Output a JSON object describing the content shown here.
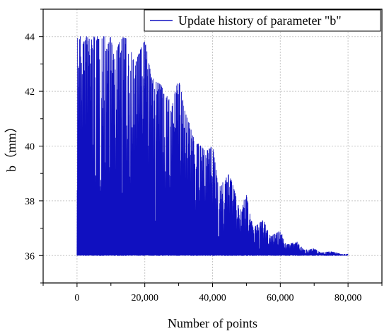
{
  "chart_data": {
    "type": "line",
    "title": "",
    "xlabel": "Number of points",
    "ylabel": "b（mm）",
    "xlim": [
      -10000,
      90000
    ],
    "ylim": [
      35,
      45
    ],
    "x_ticks": [
      0,
      20000,
      40000,
      60000,
      80000
    ],
    "x_tick_labels": [
      "0",
      "20,000",
      "40,000",
      "60,000",
      "80,000"
    ],
    "y_ticks": [
      36,
      38,
      40,
      42,
      44
    ],
    "y_tick_labels": [
      "36",
      "38",
      "40",
      "42",
      "44"
    ],
    "grid": true,
    "legend_position": "top-right",
    "series": [
      {
        "name": "Update history of parameter \"b\"",
        "color": "#1010c0",
        "baseline": 36.0,
        "envelope": [
          {
            "x": 0,
            "y": 44.0
          },
          {
            "x": 10000,
            "y": 44.0
          },
          {
            "x": 11000,
            "y": 43.2
          },
          {
            "x": 13000,
            "y": 44.0
          },
          {
            "x": 15000,
            "y": 43.9
          },
          {
            "x": 17000,
            "y": 43.0
          },
          {
            "x": 20000,
            "y": 43.9
          },
          {
            "x": 22000,
            "y": 42.5
          },
          {
            "x": 25000,
            "y": 42.2
          },
          {
            "x": 28000,
            "y": 41.5
          },
          {
            "x": 30000,
            "y": 42.5
          },
          {
            "x": 32000,
            "y": 41.2
          },
          {
            "x": 35000,
            "y": 40.2
          },
          {
            "x": 38000,
            "y": 39.8
          },
          {
            "x": 40000,
            "y": 40.0
          },
          {
            "x": 42000,
            "y": 38.5
          },
          {
            "x": 45000,
            "y": 39.0
          },
          {
            "x": 48000,
            "y": 37.7
          },
          {
            "x": 50000,
            "y": 38.2
          },
          {
            "x": 52000,
            "y": 37.0
          },
          {
            "x": 55000,
            "y": 37.3
          },
          {
            "x": 57000,
            "y": 36.7
          },
          {
            "x": 60000,
            "y": 36.9
          },
          {
            "x": 62000,
            "y": 36.4
          },
          {
            "x": 65000,
            "y": 36.5
          },
          {
            "x": 67000,
            "y": 36.2
          },
          {
            "x": 70000,
            "y": 36.25
          },
          {
            "x": 72000,
            "y": 36.1
          },
          {
            "x": 75000,
            "y": 36.15
          },
          {
            "x": 78000,
            "y": 36.05
          },
          {
            "x": 80000,
            "y": 36.05
          }
        ]
      }
    ]
  }
}
